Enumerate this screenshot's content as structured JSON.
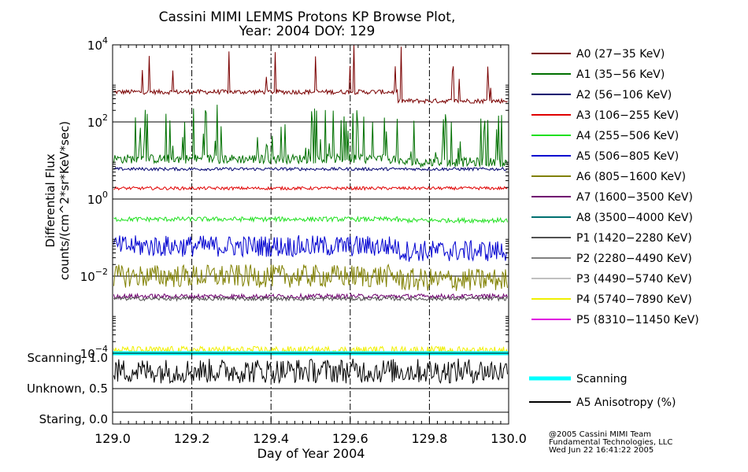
{
  "chart_data": {
    "type": "line",
    "title_line1": "Cassini MIMI LEMMS Protons KP Browse Plot,",
    "title_line2": "Year: 2004 DOY: 129",
    "xlabel": "Day of Year 2004",
    "ylabel_line1": "Differential Flux",
    "ylabel_line2": "counts/(cm^2*sr*KeV*sec)",
    "x_range": [
      129.0,
      130.0
    ],
    "x_ticks": [
      "129.0",
      "129.2",
      "129.4",
      "129.6",
      "129.8",
      "130.0"
    ],
    "y_scale": "log",
    "y_range": [
      0.0001,
      10000
    ],
    "y_ticks": [
      {
        "value": 10000,
        "base": "10",
        "exp": "4"
      },
      {
        "value": 100,
        "base": "10",
        "exp": "2"
      },
      {
        "value": 1,
        "base": "10",
        "exp": "0"
      },
      {
        "value": 0.01,
        "base": "10",
        "exp": "−2"
      },
      {
        "value": 0.0001,
        "base": "10",
        "exp": "−4"
      }
    ],
    "lower_panel_ticks": [
      {
        "value": 1.0,
        "label": "Scanning, 1.0"
      },
      {
        "value": 0.5,
        "label": "Unknown, 0.5"
      },
      {
        "value": 0.0,
        "label": "Staring, 0.0"
      }
    ],
    "series": [
      {
        "name": "A0 (27−35 KeV)",
        "color": "#7a0000",
        "level": 600,
        "late_level": 350,
        "noise": 0.06,
        "spikes": 0.04
      },
      {
        "name": "A1 (35−56 KeV)",
        "color": "#007000",
        "level": 11,
        "late_level": 9,
        "noise": 0.12,
        "spikes": 0.16
      },
      {
        "name": "A2 (56−106 KeV)",
        "color": "#000070",
        "level": 6,
        "late_level": 6,
        "noise": 0.04,
        "spikes": 0.0
      },
      {
        "name": "A3 (106−255 KeV)",
        "color": "#e00000",
        "level": 1.9,
        "late_level": 1.9,
        "noise": 0.04,
        "spikes": 0.0
      },
      {
        "name": "A4 (255−506 KeV)",
        "color": "#20e020",
        "level": 0.3,
        "late_level": 0.28,
        "noise": 0.06,
        "spikes": 0.0
      },
      {
        "name": "A5 (506−805 KeV)",
        "color": "#0000d0",
        "level": 0.06,
        "late_level": 0.045,
        "noise": 0.28,
        "spikes": 0.0
      },
      {
        "name": "A6 (805−1600 KeV)",
        "color": "#808000",
        "level": 0.01,
        "late_level": 0.008,
        "noise": 0.3,
        "spikes": 0.0
      },
      {
        "name": "A7 (1600−3500 KeV)",
        "color": "#700070",
        "level": 0.003,
        "late_level": 0.003,
        "noise": 0.06,
        "spikes": 0.0
      },
      {
        "name": "A8 (3500−4000 KeV)",
        "color": "#007070",
        "level": 0.0001,
        "late_level": 0.0001,
        "noise": 0.0,
        "spikes": 0.0
      },
      {
        "name": "P1 (1420−2280 KeV)",
        "color": "#505050",
        "level": 0.0026,
        "late_level": 0.0026,
        "noise": 0.05,
        "spikes": 0.0
      },
      {
        "name": "P2 (2280−4490 KeV)",
        "color": "#808080",
        "level": 0.0001,
        "late_level": 0.0001,
        "noise": 0.0,
        "spikes": 0.0
      },
      {
        "name": "P3 (4490−5740 KeV)",
        "color": "#c0c0c0",
        "level": 0.0001,
        "late_level": 0.0001,
        "noise": 0.0,
        "spikes": 0.0
      },
      {
        "name": "P4 (5740−7890 KeV)",
        "color": "#f0f000",
        "level": 0.00012,
        "late_level": 0.00012,
        "noise": 0.1,
        "spikes": 0.0
      },
      {
        "name": "P5 (8310−11450 KeV)",
        "color": "#e000e0",
        "level": 0.0001,
        "late_level": 0.0001,
        "noise": 0.0,
        "spikes": 0.0
      }
    ],
    "lower_series": [
      {
        "name": "Scanning",
        "color": "#00ffff",
        "value": 1.0
      },
      {
        "name": "A5 Anisotropy (%)",
        "color": "#000000",
        "value": 0.75
      }
    ],
    "credit_line1": "@2005 Cassini MIMI Team",
    "credit_line2": "Fundamental Technologies, LLC",
    "credit_line3": "Wed Jun 22 16:41:22 2005"
  }
}
